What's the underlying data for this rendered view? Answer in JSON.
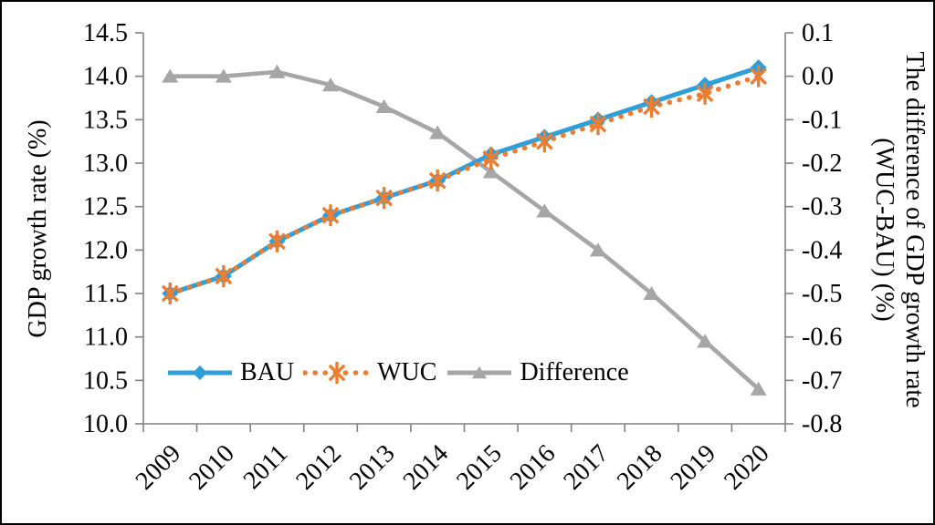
{
  "figure": {
    "background": "#ffffff",
    "border_color": "#000000",
    "axis_color": "#808080",
    "text_color": "#000000"
  },
  "chart_data": {
    "type": "line",
    "title": "",
    "grid": false,
    "categories": [
      "2009",
      "2010",
      "2011",
      "2012",
      "2013",
      "2014",
      "2015",
      "2016",
      "2017",
      "2018",
      "2019",
      "2020"
    ],
    "series": [
      {
        "name": "BAU",
        "axis": "left",
        "color": "#2E9FDA",
        "marker": "diamond",
        "line_style": "solid",
        "values": [
          11.5,
          11.7,
          12.1,
          12.4,
          12.6,
          12.8,
          13.1,
          13.3,
          13.5,
          13.7,
          13.9,
          14.1
        ]
      },
      {
        "name": "WUC",
        "axis": "left",
        "color": "#ED7D31",
        "marker": "asterisk",
        "line_style": "dotted",
        "values": [
          11.5,
          11.7,
          12.1,
          12.4,
          12.6,
          12.8,
          13.05,
          13.25,
          13.45,
          13.65,
          13.8,
          14.0
        ]
      },
      {
        "name": "Difference",
        "axis": "right",
        "color": "#A6A6A6",
        "marker": "triangle",
        "line_style": "solid",
        "values": [
          0.0,
          0.0,
          0.01,
          -0.02,
          -0.07,
          -0.13,
          -0.22,
          -0.31,
          -0.4,
          -0.5,
          -0.61,
          -0.72
        ]
      }
    ],
    "left_axis": {
      "label": "GDP growth rate (%)",
      "min": 10.0,
      "max": 14.5,
      "tick_labels": [
        "14.5",
        "14.0",
        "13.5",
        "13.0",
        "12.5",
        "12.0",
        "11.5",
        "11.0",
        "10.5",
        "10.0"
      ]
    },
    "right_axis": {
      "label_line1": "The difference of GDP growth rate",
      "label_line2": "(WUC-BAU) (%)",
      "min": -0.8,
      "max": 0.1,
      "tick_labels": [
        "0.1",
        "0.0",
        "-0.1",
        "-0.2",
        "-0.3",
        "-0.4",
        "-0.5",
        "-0.6",
        "-0.7",
        "-0.8"
      ]
    },
    "legend": {
      "position": "bottom-inside",
      "entries": [
        "BAU",
        "WUC",
        "Difference"
      ]
    }
  }
}
